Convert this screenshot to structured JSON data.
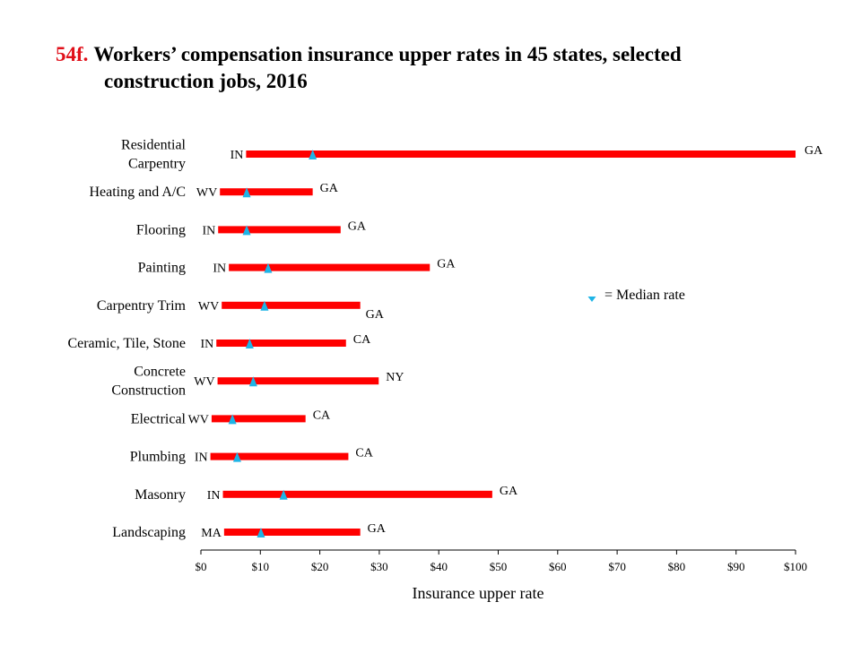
{
  "title": {
    "number": "54f.",
    "line1": "Workers’ compensation insurance upper rates in 45 states, selected",
    "line2": "construction jobs, 2016"
  },
  "legend": {
    "label": "= Median rate",
    "marker": "triangle"
  },
  "colors": {
    "bar": "#ff0000",
    "median": "#1eb4e6",
    "axis": "#000000"
  },
  "chart_data": {
    "type": "bar",
    "orientation": "horizontal-range",
    "title": "Workers’ compensation insurance upper rates in 45 states, selected construction jobs, 2016",
    "xlabel": "Insurance  upper rate",
    "xlim": [
      0,
      100
    ],
    "xticks": [
      0,
      10,
      20,
      30,
      40,
      50,
      60,
      70,
      80,
      90,
      100
    ],
    "xtick_labels": [
      "$0",
      "$10",
      "$20",
      "$30",
      "$40",
      "$50",
      "$60",
      "$70",
      "$80",
      "$90",
      "$100"
    ],
    "grid": false,
    "legend_position": "right",
    "categories": [
      {
        "label": [
          "Residential",
          "Carpentry"
        ],
        "low": 7.6,
        "high": 100,
        "median": 18.8,
        "low_state": "IN",
        "high_state": "GA"
      },
      {
        "label": [
          "Heating and A/C"
        ],
        "low": 3.2,
        "high": 18.8,
        "median": 7.7,
        "low_state": "WV",
        "high_state": "GA"
      },
      {
        "label": [
          "Flooring"
        ],
        "low": 2.9,
        "high": 23.5,
        "median": 7.7,
        "low_state": "IN",
        "high_state": "GA"
      },
      {
        "label": [
          "Painting"
        ],
        "low": 4.7,
        "high": 38.5,
        "median": 11.3,
        "low_state": "IN",
        "high_state": "GA"
      },
      {
        "label": [
          "Carpentry Trim"
        ],
        "low": 3.5,
        "high": 26.8,
        "median": 10.7,
        "low_state": "WV",
        "high_state": "GA"
      },
      {
        "label": [
          "Ceramic, Tile, Stone"
        ],
        "low": 2.6,
        "high": 24.4,
        "median": 8.2,
        "low_state": "IN",
        "high_state": "CA"
      },
      {
        "label": [
          "Concrete",
          "Construction"
        ],
        "low": 2.8,
        "high": 29.9,
        "median": 8.8,
        "low_state": "WV",
        "high_state": "NY"
      },
      {
        "label": [
          "Electrical"
        ],
        "low": 1.8,
        "high": 17.6,
        "median": 5.3,
        "low_state": "WV",
        "high_state": "CA"
      },
      {
        "label": [
          "Plumbing"
        ],
        "low": 1.6,
        "high": 24.8,
        "median": 6.1,
        "low_state": "IN",
        "high_state": "CA"
      },
      {
        "label": [
          "Masonry"
        ],
        "low": 3.7,
        "high": 49.0,
        "median": 13.9,
        "low_state": "IN",
        "high_state": "GA"
      },
      {
        "label": [
          "Landscaping"
        ],
        "low": 3.9,
        "high": 26.8,
        "median": 10.1,
        "low_state": "MA",
        "high_state": "GA"
      }
    ]
  }
}
